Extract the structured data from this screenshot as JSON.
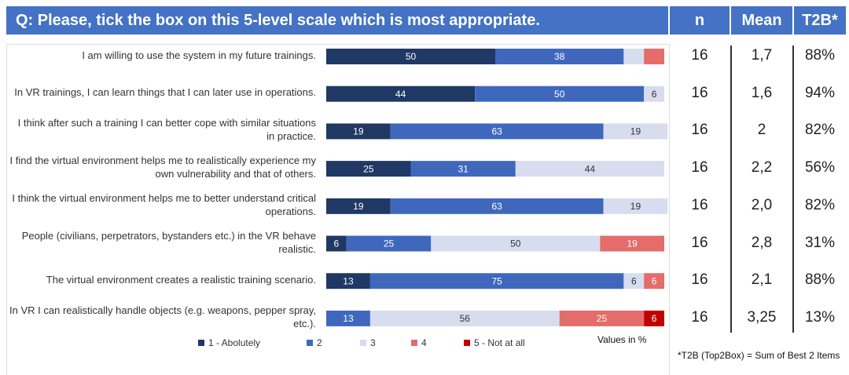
{
  "chart_data": {
    "type": "stacked-bar-horizontal",
    "title": "Q: Please, tick the box on this 5-level scale which is most appropriate.",
    "categories": [
      "I am willing to use the system in my future trainings.",
      "In VR trainings, I can learn things that I can later use in operations.",
      "I think after such a training I can better cope with similar situations in practice.",
      "I find the virtual environment helps me to realistically experience my own vulnerability and that of others.",
      "I think the virtual environment helps me to better understand critical operations.",
      "People (civilians, perpetrators, bystanders etc.)  in the VR behave realistic.",
      "The virtual environment creates a realistic training scenario.",
      "In VR I can realistically handle objects (e.g. weapons, pepper spray, etc.)."
    ],
    "xlim": [
      0,
      100
    ],
    "series": [
      {
        "name": "1 - Abolutely",
        "color": "#1f3864",
        "values": [
          50,
          44,
          19,
          25,
          19,
          6,
          13,
          0
        ],
        "value_labels": [
          "50",
          "44",
          "19",
          "25",
          "19",
          "6",
          "13",
          "0"
        ]
      },
      {
        "name": "2",
        "color": "#3f68bd",
        "values": [
          38,
          50,
          63,
          31,
          63,
          25,
          75,
          13
        ],
        "value_labels": [
          "38",
          "50",
          "63",
          "31",
          "63",
          "25",
          "75",
          "13"
        ]
      },
      {
        "name": "3",
        "color": "#d7ddee",
        "values": [
          6,
          6,
          19,
          44,
          19,
          50,
          6,
          56
        ],
        "value_labels": [
          null,
          "6",
          "19",
          "44",
          "19",
          "50",
          "6",
          "56"
        ]
      },
      {
        "name": "4",
        "color": "#e46c6a",
        "values": [
          6,
          null,
          null,
          null,
          null,
          19,
          6,
          25
        ],
        "value_labels": [
          null,
          null,
          null,
          null,
          null,
          "19",
          "6",
          "25"
        ]
      },
      {
        "name": "5 - Not at all",
        "color": "#c00000",
        "values": [
          null,
          null,
          null,
          null,
          null,
          null,
          null,
          6
        ],
        "value_labels": [
          null,
          null,
          null,
          null,
          null,
          null,
          null,
          "6"
        ]
      }
    ],
    "note": "Values in %"
  },
  "table": {
    "headers": [
      "n",
      "Mean",
      "T2B*"
    ],
    "rows": [
      [
        16,
        "1,7",
        "88%"
      ],
      [
        16,
        "1,6",
        "94%"
      ],
      [
        16,
        "2",
        "82%"
      ],
      [
        16,
        "2,2",
        "56%"
      ],
      [
        16,
        "2,0",
        "82%"
      ],
      [
        16,
        "2,8",
        "31%"
      ],
      [
        16,
        "2,1",
        "88%"
      ],
      [
        16,
        "3,25",
        "13%"
      ]
    ],
    "footnote": "*T2B (Top2Box) = Sum of Best 2 Items"
  }
}
